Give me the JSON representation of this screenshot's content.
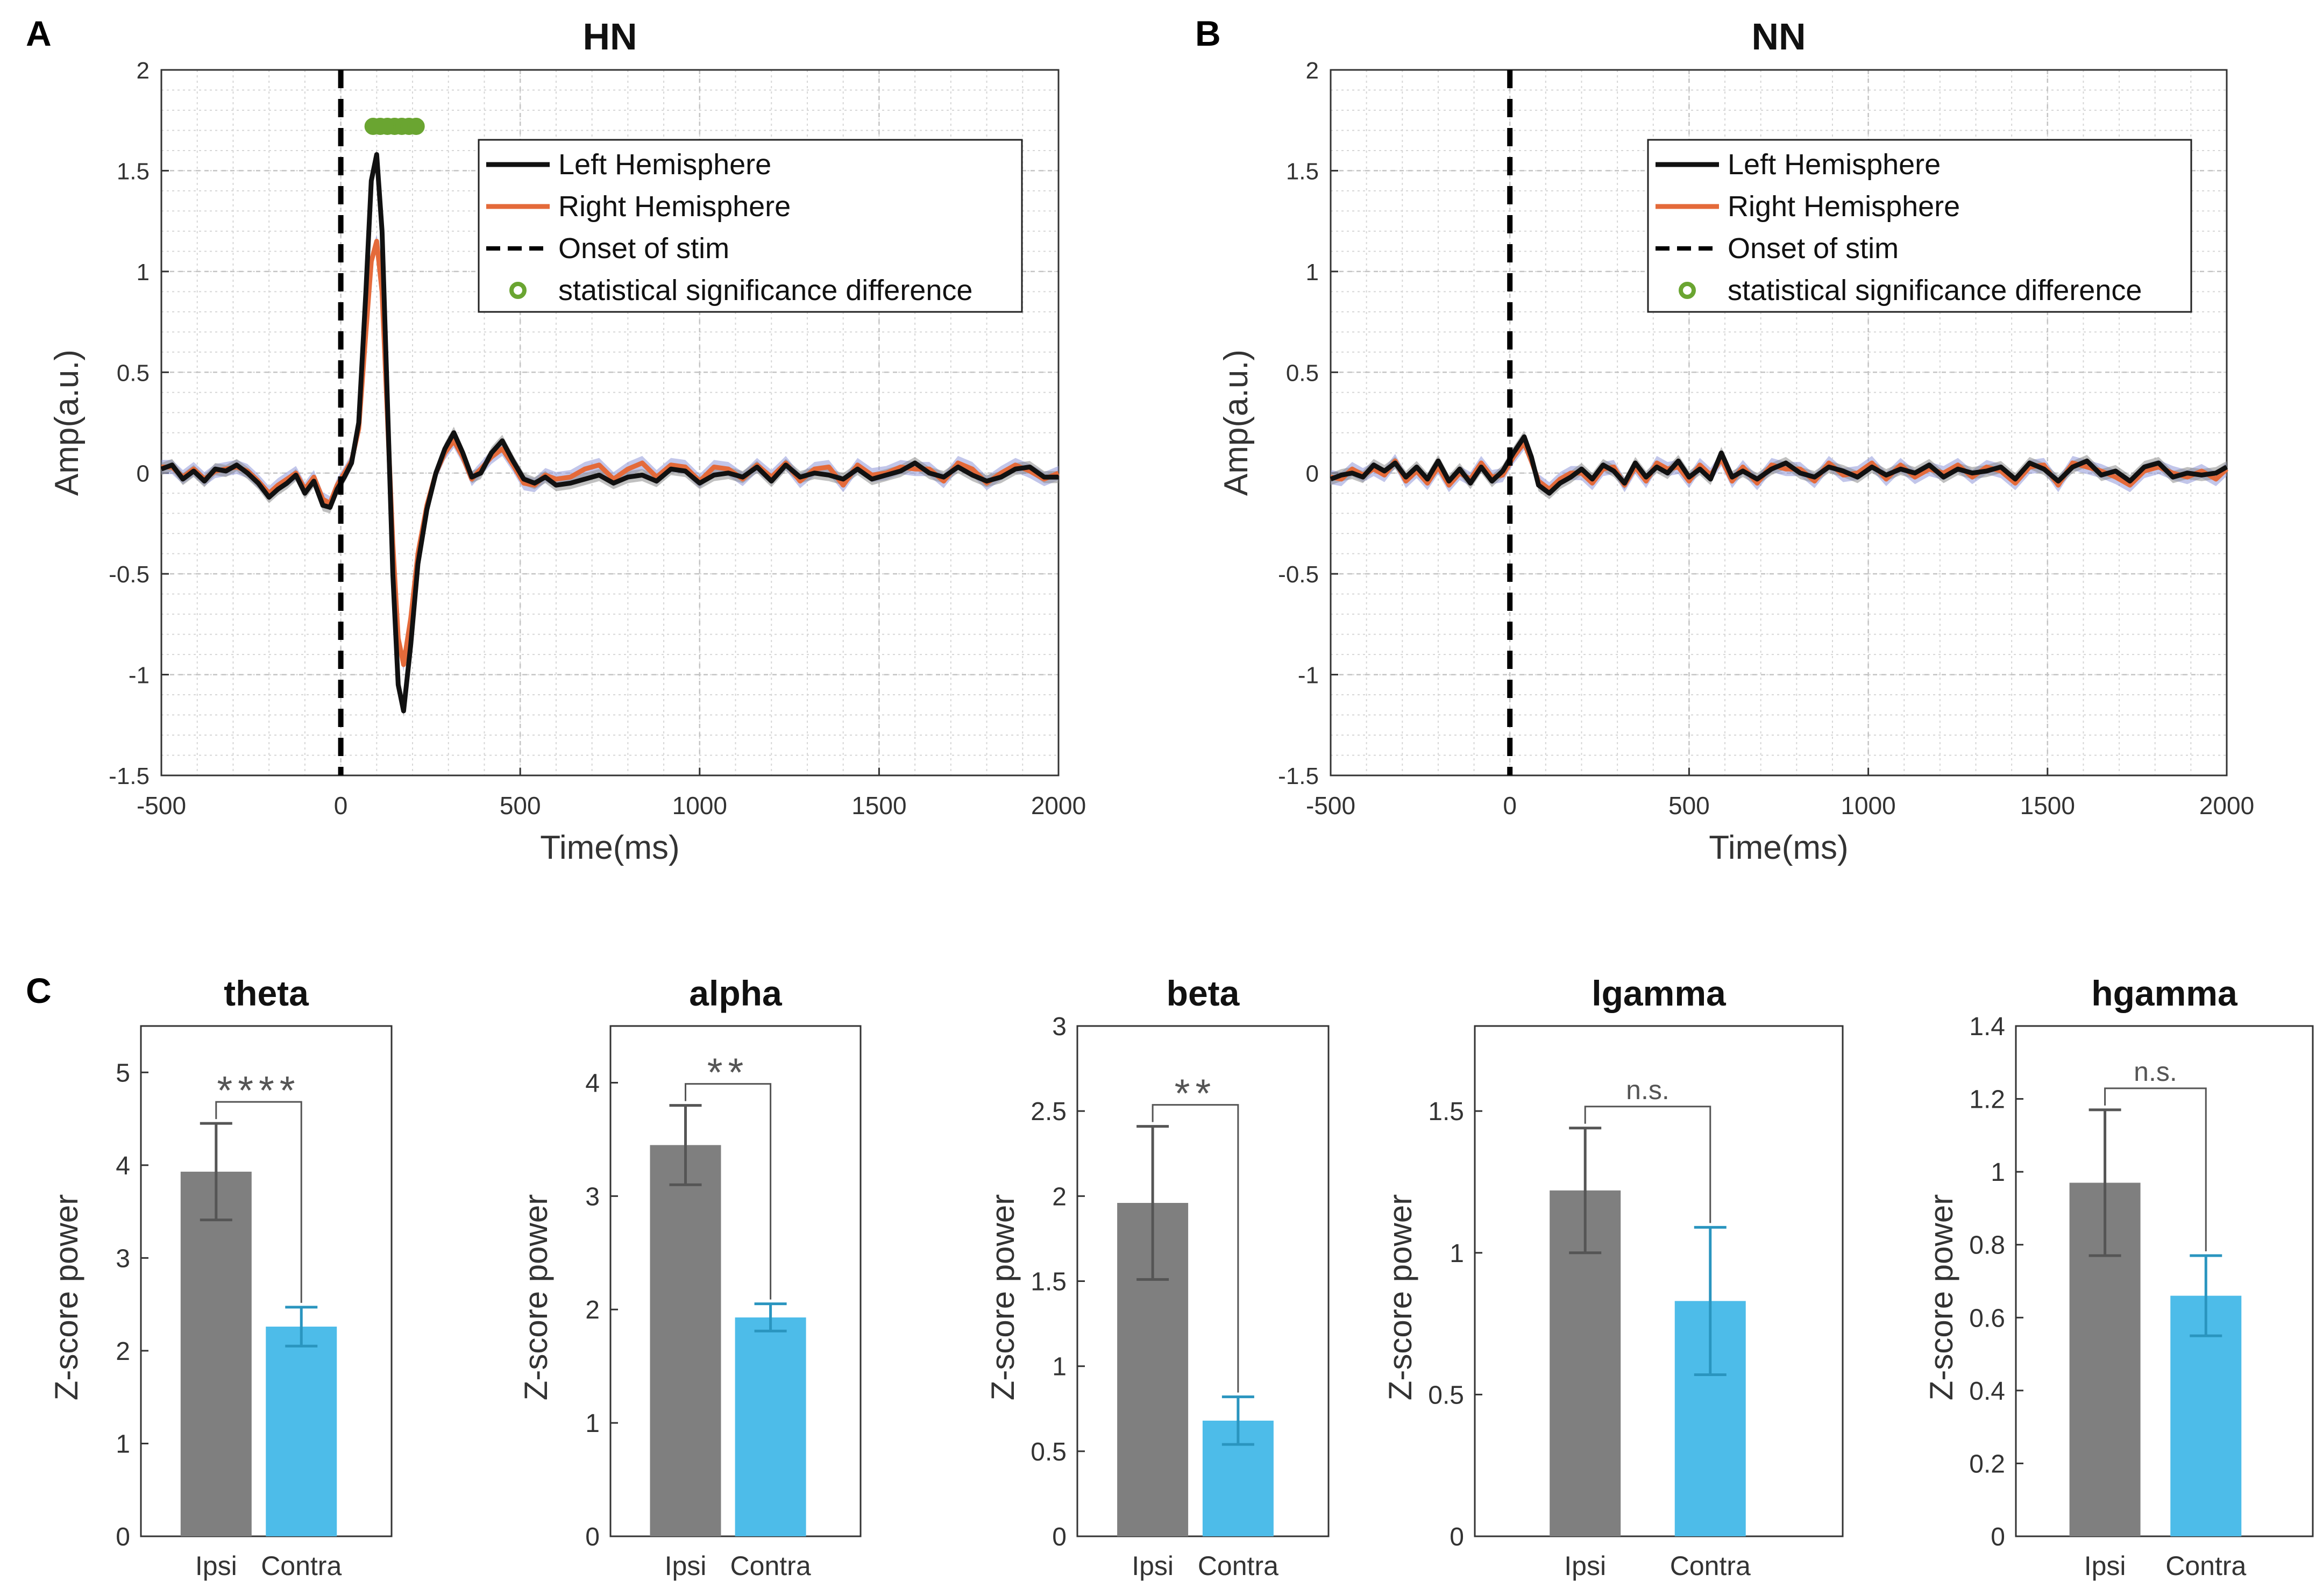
{
  "panel_labels": {
    "a": "A",
    "b": "B",
    "c": "C"
  },
  "legend": {
    "left": "Left Hemisphere",
    "right": "Right Hemisphere",
    "onset": "Onset of stim",
    "sig": "statistical significance difference"
  },
  "colors": {
    "left_line": "#111111",
    "right_line": "#e46a3a",
    "shade_left": "#8c8c8c",
    "shade_right": "#8f98d8",
    "sig_marker": "#6aa531",
    "bar_ipsi": "#7f7f7f",
    "bar_contra": "#4dbce9",
    "err_ipsi": "#555555",
    "err_contra": "#2a95bf"
  },
  "chart_data": [
    {
      "id": "HN",
      "type": "line",
      "title": "HN",
      "xlabel": "Time(ms)",
      "ylabel": "Amp(a.u.)",
      "xlim": [
        -500,
        2000
      ],
      "ylim": [
        -1.5,
        2
      ],
      "xticks": [
        -500,
        0,
        500,
        1000,
        1500,
        2000
      ],
      "yticks": [
        -1.5,
        -1,
        -0.5,
        0,
        0.5,
        1,
        1.5,
        2
      ],
      "onset": 0,
      "significance": {
        "y": 1.72,
        "x": [
          90,
          110,
          130,
          150,
          170,
          190,
          210
        ]
      },
      "series": [
        {
          "name": "Left Hemisphere",
          "x": [
            -500,
            -470,
            -440,
            -410,
            -380,
            -350,
            -320,
            -290,
            -260,
            -230,
            -200,
            -175,
            -150,
            -125,
            -100,
            -75,
            -50,
            -30,
            -10,
            10,
            30,
            50,
            70,
            85,
            100,
            115,
            130,
            145,
            160,
            175,
            195,
            215,
            240,
            265,
            290,
            315,
            340,
            365,
            390,
            420,
            450,
            480,
            510,
            540,
            570,
            600,
            640,
            680,
            720,
            760,
            800,
            840,
            880,
            920,
            960,
            1000,
            1040,
            1080,
            1120,
            1160,
            1200,
            1240,
            1280,
            1320,
            1360,
            1400,
            1440,
            1480,
            1520,
            1560,
            1600,
            1640,
            1680,
            1720,
            1760,
            1800,
            1840,
            1880,
            1920,
            1960,
            2000
          ],
          "y": [
            0.02,
            0.04,
            -0.03,
            0.01,
            -0.04,
            0.02,
            0.01,
            0.04,
            0.0,
            -0.05,
            -0.12,
            -0.08,
            -0.05,
            -0.01,
            -0.1,
            -0.04,
            -0.16,
            -0.17,
            -0.08,
            -0.02,
            0.05,
            0.25,
            0.9,
            1.45,
            1.58,
            1.2,
            0.35,
            -0.5,
            -1.05,
            -1.18,
            -0.85,
            -0.45,
            -0.18,
            0.0,
            0.12,
            0.2,
            0.1,
            -0.02,
            0.0,
            0.1,
            0.16,
            0.06,
            -0.03,
            -0.05,
            -0.02,
            -0.06,
            -0.05,
            -0.03,
            -0.01,
            -0.05,
            -0.02,
            -0.01,
            -0.04,
            0.02,
            0.01,
            -0.05,
            -0.01,
            0.0,
            -0.02,
            0.03,
            -0.04,
            0.04,
            -0.02,
            0.0,
            -0.01,
            -0.03,
            0.02,
            -0.03,
            -0.01,
            0.01,
            0.05,
            0.0,
            -0.02,
            0.03,
            -0.01,
            -0.04,
            -0.02,
            0.02,
            0.03,
            -0.02,
            -0.02
          ]
        },
        {
          "name": "Right Hemisphere",
          "x": [
            -500,
            -470,
            -440,
            -410,
            -380,
            -350,
            -320,
            -290,
            -260,
            -230,
            -200,
            -175,
            -150,
            -125,
            -100,
            -75,
            -50,
            -30,
            -10,
            10,
            30,
            50,
            70,
            85,
            100,
            115,
            130,
            145,
            160,
            175,
            195,
            215,
            240,
            265,
            290,
            315,
            340,
            365,
            390,
            420,
            450,
            480,
            510,
            540,
            570,
            600,
            640,
            680,
            720,
            760,
            800,
            840,
            880,
            920,
            960,
            1000,
            1040,
            1080,
            1120,
            1160,
            1200,
            1240,
            1280,
            1320,
            1360,
            1400,
            1440,
            1480,
            1520,
            1560,
            1600,
            1640,
            1680,
            1720,
            1760,
            1800,
            1840,
            1880,
            1920,
            1960,
            2000
          ],
          "y": [
            0.03,
            0.03,
            -0.02,
            0.02,
            -0.03,
            0.01,
            0.02,
            0.03,
            0.01,
            -0.04,
            -0.1,
            -0.06,
            -0.03,
            0.0,
            -0.08,
            -0.02,
            -0.13,
            -0.15,
            -0.06,
            0.0,
            0.06,
            0.22,
            0.7,
            1.05,
            1.15,
            0.9,
            0.28,
            -0.35,
            -0.82,
            -0.95,
            -0.72,
            -0.4,
            -0.16,
            0.0,
            0.1,
            0.16,
            0.08,
            -0.03,
            0.02,
            0.08,
            0.12,
            0.04,
            -0.05,
            -0.06,
            -0.01,
            -0.03,
            -0.02,
            0.02,
            0.04,
            -0.03,
            0.02,
            0.05,
            -0.02,
            0.04,
            0.03,
            -0.04,
            0.03,
            0.02,
            -0.03,
            0.04,
            -0.02,
            0.05,
            -0.04,
            0.02,
            0.03,
            -0.06,
            0.04,
            -0.01,
            0.0,
            0.03,
            0.02,
            0.02,
            -0.04,
            0.05,
            0.02,
            -0.05,
            0.0,
            0.04,
            0.01,
            -0.03,
            0.0
          ]
        }
      ]
    },
    {
      "id": "NN",
      "type": "line",
      "title": "NN",
      "xlabel": "Time(ms)",
      "ylabel": "Amp(a.u.)",
      "xlim": [
        -500,
        2000
      ],
      "ylim": [
        -1.5,
        2
      ],
      "xticks": [
        -500,
        0,
        500,
        1000,
        1500,
        2000
      ],
      "yticks": [
        -1.5,
        -1,
        -0.5,
        0,
        0.5,
        1,
        1.5,
        2
      ],
      "onset": 0,
      "series": [
        {
          "name": "Left Hemisphere",
          "x": [
            -500,
            -470,
            -440,
            -410,
            -380,
            -350,
            -320,
            -290,
            -260,
            -230,
            -200,
            -170,
            -140,
            -110,
            -80,
            -50,
            -20,
            10,
            40,
            60,
            80,
            110,
            140,
            170,
            200,
            230,
            260,
            290,
            320,
            350,
            380,
            410,
            440,
            470,
            500,
            530,
            560,
            590,
            620,
            650,
            690,
            730,
            770,
            810,
            850,
            890,
            930,
            970,
            1010,
            1050,
            1090,
            1130,
            1170,
            1210,
            1250,
            1290,
            1330,
            1370,
            1410,
            1450,
            1490,
            1530,
            1570,
            1610,
            1650,
            1690,
            1730,
            1770,
            1810,
            1850,
            1890,
            1930,
            1970,
            2000
          ],
          "y": [
            -0.03,
            -0.01,
            0.0,
            -0.02,
            0.04,
            0.01,
            0.05,
            -0.02,
            0.03,
            -0.03,
            0.06,
            -0.04,
            0.02,
            -0.05,
            0.03,
            -0.04,
            0.01,
            0.1,
            0.18,
            0.08,
            -0.06,
            -0.1,
            -0.05,
            -0.02,
            0.02,
            -0.03,
            0.04,
            0.01,
            -0.05,
            0.05,
            -0.02,
            0.03,
            0.0,
            0.06,
            -0.02,
            0.02,
            -0.03,
            0.1,
            -0.02,
            0.01,
            -0.03,
            0.02,
            0.05,
            0.0,
            -0.02,
            0.03,
            0.01,
            -0.02,
            0.03,
            -0.01,
            0.02,
            0.0,
            0.04,
            -0.02,
            0.02,
            0.0,
            0.01,
            0.03,
            -0.03,
            0.05,
            0.02,
            -0.04,
            0.03,
            0.06,
            -0.01,
            0.01,
            -0.04,
            0.03,
            0.05,
            -0.02,
            0.0,
            -0.01,
            0.0,
            0.03
          ]
        },
        {
          "name": "Right Hemisphere",
          "x": [
            -500,
            -470,
            -440,
            -410,
            -380,
            -350,
            -320,
            -290,
            -260,
            -230,
            -200,
            -170,
            -140,
            -110,
            -80,
            -50,
            -20,
            10,
            40,
            60,
            80,
            110,
            140,
            170,
            200,
            230,
            260,
            290,
            320,
            350,
            380,
            410,
            440,
            470,
            500,
            530,
            560,
            590,
            620,
            650,
            690,
            730,
            770,
            810,
            850,
            890,
            930,
            970,
            1010,
            1050,
            1090,
            1130,
            1170,
            1210,
            1250,
            1290,
            1330,
            1370,
            1410,
            1450,
            1490,
            1530,
            1570,
            1610,
            1650,
            1690,
            1730,
            1770,
            1810,
            1850,
            1890,
            1930,
            1970,
            2000
          ],
          "y": [
            -0.02,
            -0.03,
            0.02,
            -0.01,
            0.02,
            -0.01,
            0.06,
            -0.04,
            0.01,
            -0.05,
            0.03,
            -0.06,
            0.0,
            -0.03,
            0.05,
            -0.02,
            -0.01,
            0.08,
            0.15,
            0.06,
            -0.04,
            -0.08,
            -0.03,
            0.0,
            0.0,
            -0.05,
            0.02,
            0.03,
            -0.06,
            0.03,
            -0.04,
            0.05,
            0.02,
            0.03,
            -0.04,
            0.04,
            -0.01,
            0.07,
            -0.04,
            0.03,
            -0.05,
            0.04,
            0.02,
            0.02,
            -0.04,
            0.05,
            -0.01,
            0.0,
            0.05,
            -0.03,
            0.04,
            -0.02,
            0.02,
            0.0,
            0.04,
            -0.02,
            0.03,
            0.01,
            -0.05,
            0.03,
            0.04,
            -0.06,
            0.05,
            0.03,
            0.01,
            -0.02,
            -0.06,
            0.01,
            0.03,
            0.0,
            -0.02,
            0.01,
            -0.03,
            0.02
          ]
        }
      ]
    },
    {
      "id": "theta",
      "type": "bar",
      "title": "theta",
      "ylabel": "Z-score power",
      "categories": [
        "Ipsi",
        "Contra"
      ],
      "values": [
        3.93,
        2.26
      ],
      "errors": [
        0.52,
        0.21
      ],
      "ylim": [
        0,
        5.5
      ],
      "yticks": [
        0,
        1,
        2,
        3,
        4,
        5
      ],
      "significance": "****"
    },
    {
      "id": "alpha",
      "type": "bar",
      "title": "alpha",
      "ylabel": "Z-score power",
      "categories": [
        "Ipsi",
        "Contra"
      ],
      "values": [
        3.45,
        1.93
      ],
      "errors": [
        0.35,
        0.12
      ],
      "ylim": [
        0,
        4.5
      ],
      "yticks": [
        0,
        1,
        2,
        3,
        4
      ],
      "significance": "**"
    },
    {
      "id": "beta",
      "type": "bar",
      "title": "beta",
      "ylabel": "Z-score power",
      "categories": [
        "Ipsi",
        "Contra"
      ],
      "values": [
        1.96,
        0.68
      ],
      "errors": [
        0.45,
        0.14
      ],
      "ylim": [
        0,
        3
      ],
      "yticks": [
        0,
        0.5,
        1,
        1.5,
        2,
        2.5,
        3
      ],
      "significance": "**"
    },
    {
      "id": "lgamma",
      "type": "bar",
      "title": "lgamma",
      "ylabel": "Z-score power",
      "categories": [
        "Ipsi",
        "Contra"
      ],
      "values": [
        1.22,
        0.83
      ],
      "errors": [
        0.22,
        0.26
      ],
      "ylim": [
        0,
        1.8
      ],
      "yticks": [
        0,
        0.5,
        1,
        1.5
      ],
      "significance": "n.s."
    },
    {
      "id": "hgamma",
      "type": "bar",
      "title": "hgamma",
      "ylabel": "Z-score power",
      "categories": [
        "Ipsi",
        "Contra"
      ],
      "values": [
        0.97,
        0.66
      ],
      "errors": [
        0.2,
        0.11
      ],
      "ylim": [
        0,
        1.4
      ],
      "yticks": [
        0,
        0.2,
        0.4,
        0.6,
        0.8,
        1,
        1.2,
        1.4
      ],
      "significance": "n.s."
    }
  ]
}
